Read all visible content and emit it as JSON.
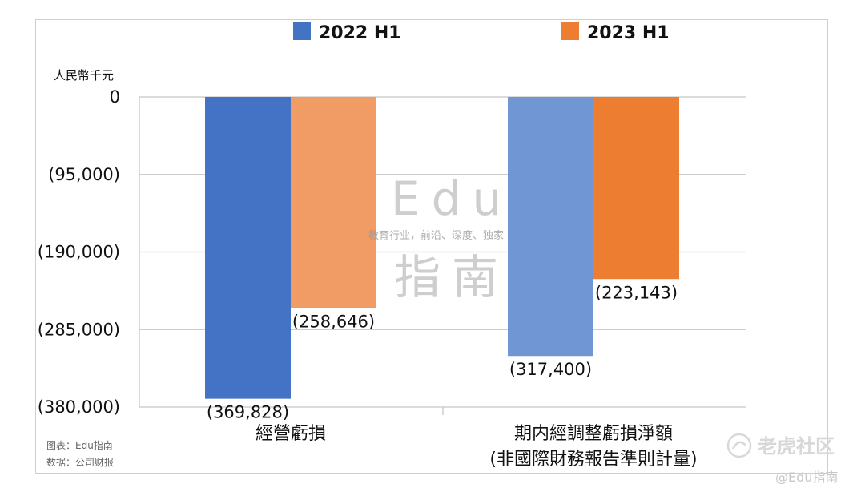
{
  "chart_data": {
    "type": "bar",
    "unit_label": "人民幣千元",
    "categories": [
      {
        "lines": [
          "經營虧損"
        ]
      },
      {
        "lines": [
          "期内經調整虧損淨額",
          "(非國際財務報告準則計量)"
        ]
      }
    ],
    "series": [
      {
        "name": "2022 H1",
        "color": "#4472c4",
        "values": [
          -369828,
          -317400
        ],
        "bar_colors": [
          "#4472c4",
          "#7096d4"
        ]
      },
      {
        "name": "2023 H1",
        "color": "#ed7d31",
        "values": [
          -258646,
          -223143
        ],
        "bar_colors": [
          "#f19c65",
          "#ed7d31"
        ]
      }
    ],
    "data_labels": [
      [
        "(369,828)",
        "(317,400)"
      ],
      [
        "(258,646)",
        "(223,143)"
      ]
    ],
    "ylim": [
      -380000,
      0
    ],
    "yticks": [
      0,
      -95000,
      -190000,
      -285000,
      -380000
    ],
    "ytick_labels": [
      "0",
      "(95,000)",
      "(190,000)",
      "(285,000)",
      "(380,000)"
    ],
    "title": "",
    "xlabel": "",
    "ylabel": "人民幣千元"
  },
  "source": {
    "line1": "图表：Edu指南",
    "line2": "数据：公司财报"
  },
  "watermark": {
    "big_top": "Edu",
    "tagline": "教育行业，前沿、深度、独家",
    "big_bottom": "指南"
  },
  "branding": {
    "name": "老虎社区",
    "handle": "@Edu指南"
  }
}
